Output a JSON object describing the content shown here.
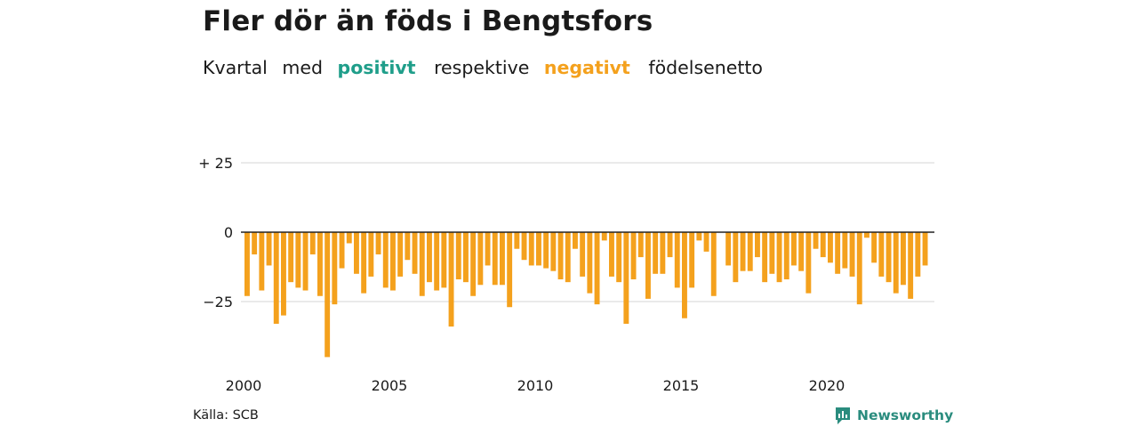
{
  "title": "Fler dör än föds i Bengtsfors",
  "subtitle": {
    "w1": "Kvartal",
    "w2": "med",
    "positive": "positivt",
    "w3": "respektive",
    "negative": "negativt",
    "w4": "födelsenetto"
  },
  "source": "Källa: SCB",
  "brand": "Newsworthy",
  "colors": {
    "positive": "#1f9e8a",
    "negative": "#f4a11d",
    "grid": "#dddddd",
    "zero_line": "#222222",
    "brand": "#2a8c7e"
  },
  "chart_data": {
    "type": "bar",
    "x_start": 2000,
    "x_end": 2024,
    "periods_per_year": 4,
    "ylim": [
      -45,
      25
    ],
    "yticks": [
      {
        "value": 25,
        "label": "+ 25"
      },
      {
        "value": 0,
        "label": "0"
      },
      {
        "value": -25,
        "label": "−25"
      }
    ],
    "xticks": [
      {
        "value": 2000,
        "label": "2000"
      },
      {
        "value": 2005,
        "label": "2005"
      },
      {
        "value": 2010,
        "label": "2010"
      },
      {
        "value": 2015,
        "label": "2015"
      },
      {
        "value": 2020,
        "label": "2020"
      }
    ],
    "grid": true,
    "values": [
      -23,
      -8,
      -21,
      -12,
      -33,
      -30,
      -18,
      -20,
      -21,
      -8,
      -23,
      -45,
      -26,
      -13,
      -4,
      -15,
      -22,
      -16,
      -8,
      -20,
      -21,
      -16,
      -10,
      -15,
      -23,
      -18,
      -21,
      -20,
      -34,
      -17,
      -18,
      -23,
      -19,
      -12,
      -19,
      -19,
      -27,
      -6,
      -10,
      -12,
      -12,
      -13,
      -14,
      -17,
      -18,
      -6,
      -16,
      -22,
      -26,
      -3,
      -16,
      -18,
      -33,
      -17,
      -9,
      -24,
      -15,
      -15,
      -9,
      -20,
      -31,
      -20,
      -3,
      -7,
      -23,
      0,
      -12,
      -18,
      -14,
      -14,
      -9,
      -18,
      -15,
      -18,
      -17,
      -12,
      -14,
      -22,
      -6,
      -9,
      -11,
      -15,
      -13,
      -16,
      -26,
      -2,
      -11,
      -16,
      -18,
      -22,
      -19,
      -24,
      -16,
      -12
    ]
  }
}
